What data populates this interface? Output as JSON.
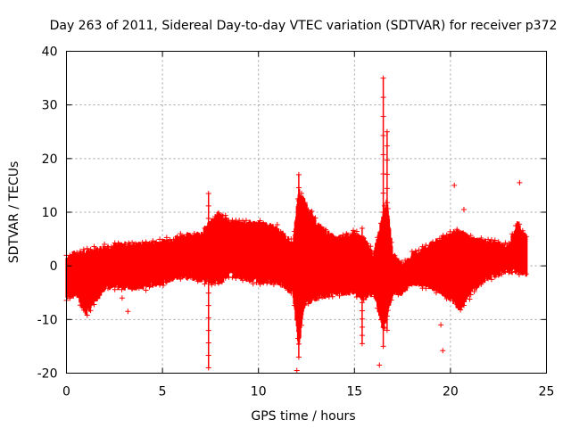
{
  "chart_data": {
    "type": "scatter",
    "title": "Day 263 of 2011, Sidereal Day-to-day VTEC variation (SDTVAR) for receiver p372",
    "xlabel": "GPS time / hours",
    "ylabel": "SDTVAR / TECUs",
    "xlim": [
      0,
      25
    ],
    "ylim": [
      -20,
      40
    ],
    "xticks": [
      0,
      5,
      10,
      15,
      20,
      25
    ],
    "yticks": [
      -20,
      -10,
      0,
      10,
      20,
      30,
      40
    ],
    "xtick_labels": [
      "0",
      "5",
      "10",
      "15",
      "20",
      "25"
    ],
    "ytick_labels": [
      "-20",
      "-10",
      "0",
      "10",
      "20",
      "30",
      "40"
    ],
    "grid": true,
    "series": [
      {
        "name": "SDTVAR",
        "color": "#ff0000",
        "marker": "plus",
        "envelope": {
          "x": [
            0.0,
            0.5,
            1.0,
            2.0,
            3.0,
            4.0,
            5.0,
            6.0,
            7.0,
            7.5,
            8.0,
            8.5,
            9.0,
            10.0,
            11.0,
            11.8,
            12.1,
            12.4,
            13.0,
            14.0,
            15.0,
            15.5,
            16.0,
            16.5,
            16.7,
            17.0,
            17.5,
            18.0,
            19.0,
            20.0,
            20.5,
            21.0,
            22.0,
            23.0,
            23.5,
            24.0
          ],
          "upper": [
            1.5,
            2.5,
            2.5,
            3.5,
            4.0,
            4.0,
            4.5,
            5.5,
            6.0,
            8.0,
            10.0,
            8.0,
            8.0,
            8.0,
            7.0,
            4.0,
            14.0,
            12.0,
            8.0,
            5.0,
            6.0,
            5.0,
            2.0,
            10.0,
            12.0,
            2.0,
            0.0,
            2.0,
            4.0,
            6.0,
            6.5,
            5.0,
            4.5,
            3.5,
            8.0,
            5.0
          ],
          "lower": [
            -6.0,
            -5.0,
            -9.0,
            -4.0,
            -4.0,
            -4.0,
            -3.0,
            -2.0,
            -2.5,
            -3.0,
            -3.0,
            -1.5,
            -2.0,
            -3.0,
            -3.0,
            -5.0,
            -15.0,
            -7.0,
            -6.0,
            -5.0,
            -5.0,
            -6.0,
            -5.0,
            -12.0,
            -9.0,
            -5.0,
            -5.0,
            -3.0,
            -4.0,
            -6.0,
            -8.0,
            -5.0,
            -2.0,
            -1.0,
            -1.0,
            -1.5
          ]
        },
        "spikes": [
          {
            "x": 7.4,
            "y_min": -19.0,
            "y_max": 13.5
          },
          {
            "x": 12.1,
            "y_min": -17.0,
            "y_max": 17.0
          },
          {
            "x": 15.4,
            "y_min": -14.5,
            "y_max": 7.0
          },
          {
            "x": 16.5,
            "y_min": -15.0,
            "y_max": 35.0
          },
          {
            "x": 16.7,
            "y_min": -12.0,
            "y_max": 25.0
          }
        ],
        "outliers": [
          {
            "x": 12.0,
            "y": -19.5
          },
          {
            "x": 16.3,
            "y": -18.5
          },
          {
            "x": 19.6,
            "y": -15.8
          },
          {
            "x": 19.5,
            "y": -11.0
          },
          {
            "x": 20.2,
            "y": 15.0
          },
          {
            "x": 20.7,
            "y": 10.5
          },
          {
            "x": 23.6,
            "y": 15.5
          },
          {
            "x": 3.2,
            "y": -8.5
          },
          {
            "x": 2.9,
            "y": -6.0
          },
          {
            "x": 21.0,
            "y": -6.2
          }
        ]
      }
    ]
  }
}
